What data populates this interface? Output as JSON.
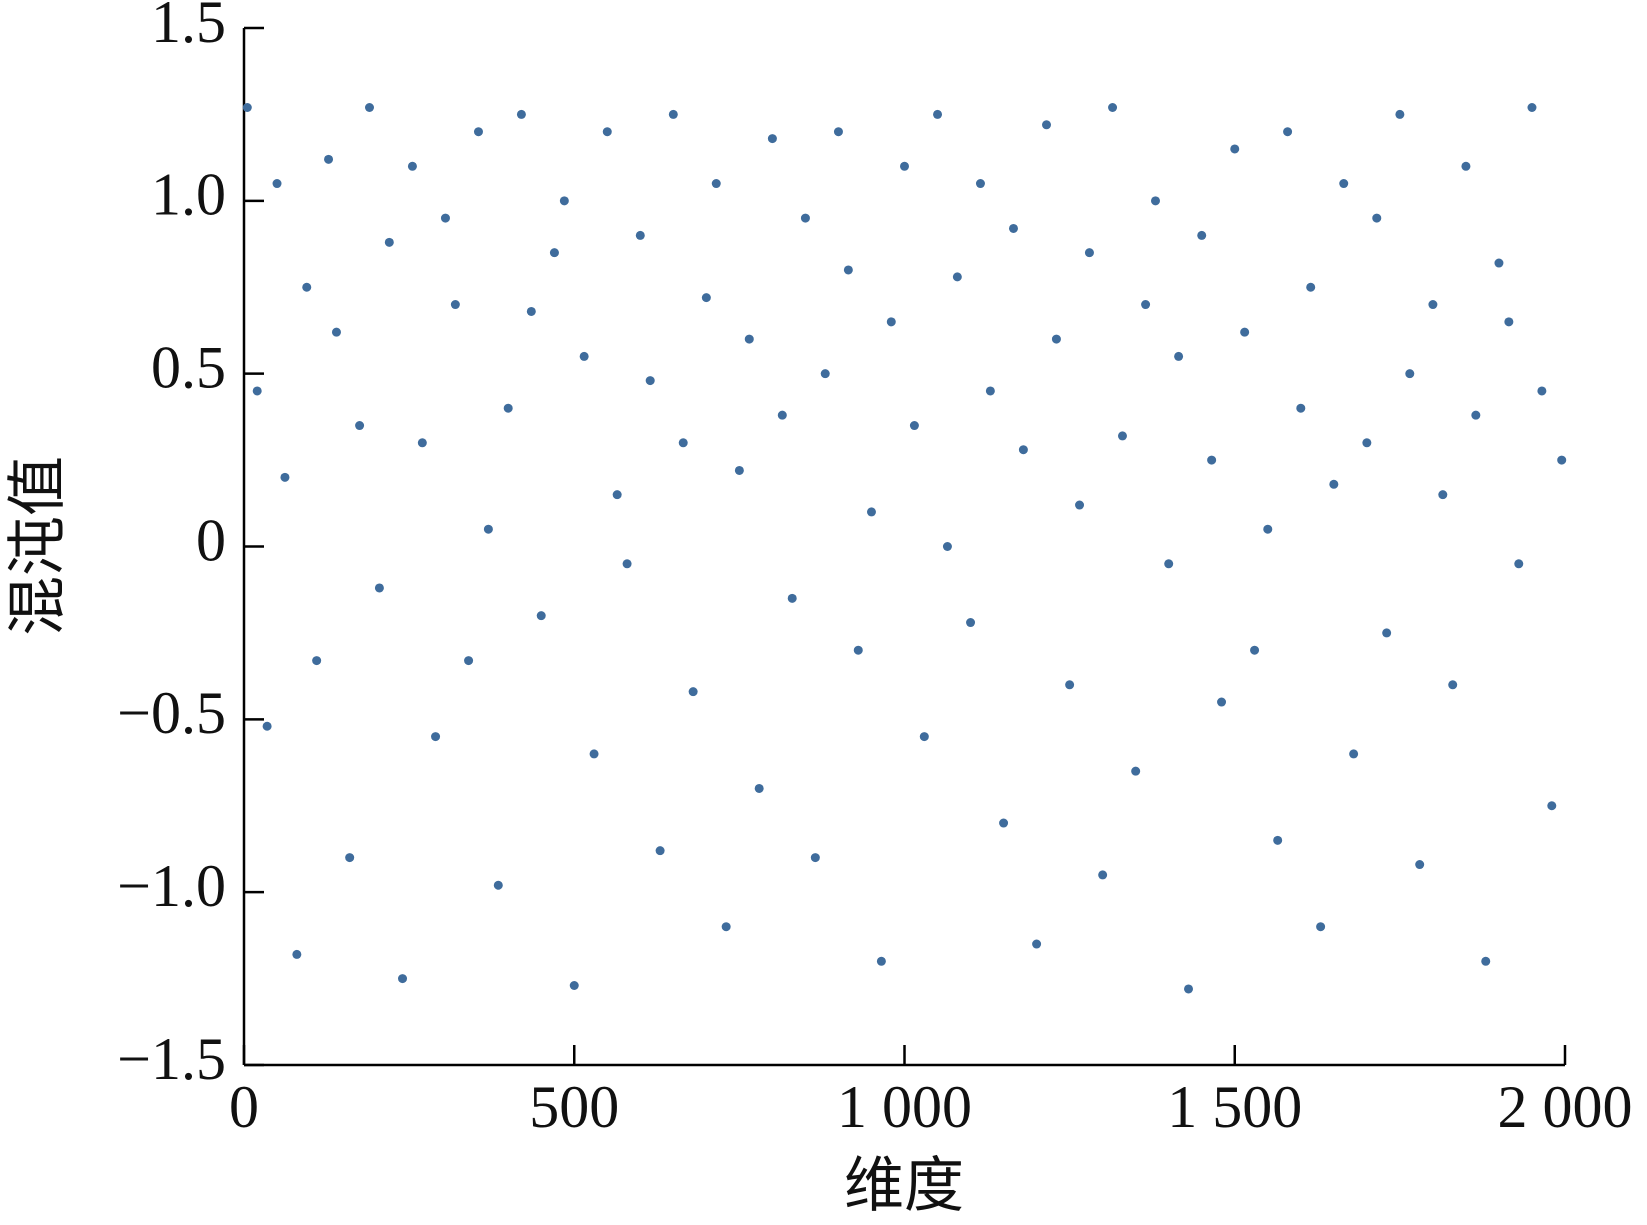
{
  "chart_data": {
    "type": "scatter",
    "x_label": "维度",
    "y_label": "混沌值",
    "color": "#3f6c9c",
    "xlim": [
      0,
      2000
    ],
    "ylim": [
      -1.5,
      1.5
    ],
    "xticks": [
      0,
      500,
      {
        "value": 1000,
        "label": "1 000"
      },
      {
        "value": 1500,
        "label": "1 500"
      },
      {
        "value": 2000,
        "label": "2 000"
      }
    ],
    "yticks": [
      {
        "value": -1.5,
        "label": "−1.5"
      },
      {
        "value": -1,
        "label": "−1.0"
      },
      {
        "value": -0.5,
        "label": "−0.5"
      },
      0,
      0.5,
      {
        "value": 1,
        "label": "1.0"
      },
      1.5
    ],
    "x": [
      5,
      20,
      35,
      50,
      62,
      80,
      95,
      110,
      128,
      140,
      160,
      175,
      190,
      205,
      220,
      240,
      255,
      270,
      290,
      305,
      320,
      340,
      355,
      370,
      385,
      400,
      420,
      435,
      450,
      470,
      485,
      500,
      515,
      530,
      550,
      565,
      580,
      600,
      615,
      630,
      650,
      665,
      680,
      700,
      715,
      730,
      750,
      765,
      780,
      800,
      815,
      830,
      850,
      865,
      880,
      900,
      915,
      930,
      950,
      965,
      980,
      1000,
      1015,
      1030,
      1050,
      1065,
      1080,
      1100,
      1115,
      1130,
      1150,
      1165,
      1180,
      1200,
      1215,
      1230,
      1250,
      1265,
      1280,
      1300,
      1315,
      1330,
      1350,
      1365,
      1380,
      1400,
      1415,
      1430,
      1450,
      1465,
      1480,
      1500,
      1515,
      1530,
      1550,
      1565,
      1580,
      1600,
      1615,
      1630,
      1650,
      1665,
      1680,
      1700,
      1715,
      1730,
      1750,
      1765,
      1780,
      1800,
      1815,
      1830,
      1850,
      1865,
      1880,
      1900,
      1915,
      1930,
      1950,
      1965,
      1980,
      1995
    ],
    "y": [
      1.27,
      0.45,
      -0.52,
      1.05,
      0.2,
      -1.18,
      0.75,
      -0.33,
      1.12,
      0.62,
      -0.9,
      0.35,
      1.27,
      -0.12,
      0.88,
      -1.25,
      1.1,
      0.3,
      -0.55,
      0.95,
      0.7,
      -0.33,
      1.2,
      0.05,
      -0.98,
      0.4,
      1.25,
      0.68,
      -0.2,
      0.85,
      1.0,
      -1.27,
      0.55,
      -0.6,
      1.2,
      0.15,
      -0.05,
      0.9,
      0.48,
      -0.88,
      1.25,
      0.3,
      -0.42,
      0.72,
      1.05,
      -1.1,
      0.22,
      0.6,
      -0.7,
      1.18,
      0.38,
      -0.15,
      0.95,
      -0.9,
      0.5,
      1.2,
      0.8,
      -0.3,
      0.1,
      -1.2,
      0.65,
      1.1,
      0.35,
      -0.55,
      1.25,
      0.0,
      0.78,
      -0.22,
      1.05,
      0.45,
      -0.8,
      0.92,
      0.28,
      -1.15,
      1.22,
      0.6,
      -0.4,
      0.12,
      0.85,
      -0.95,
      1.27,
      0.32,
      -0.65,
      0.7,
      1.0,
      -0.05,
      0.55,
      -1.28,
      0.9,
      0.25,
      -0.45,
      1.15,
      0.62,
      -0.3,
      0.05,
      -0.85,
      1.2,
      0.4,
      0.75,
      -1.1,
      0.18,
      1.05,
      -0.6,
      0.3,
      0.95,
      -0.25,
      1.25,
      0.5,
      -0.92,
      0.7,
      0.15,
      -0.4,
      1.1,
      0.38,
      -1.2,
      0.82,
      0.65,
      -0.05,
      1.27,
      0.45,
      -0.75,
      0.25
    ]
  }
}
